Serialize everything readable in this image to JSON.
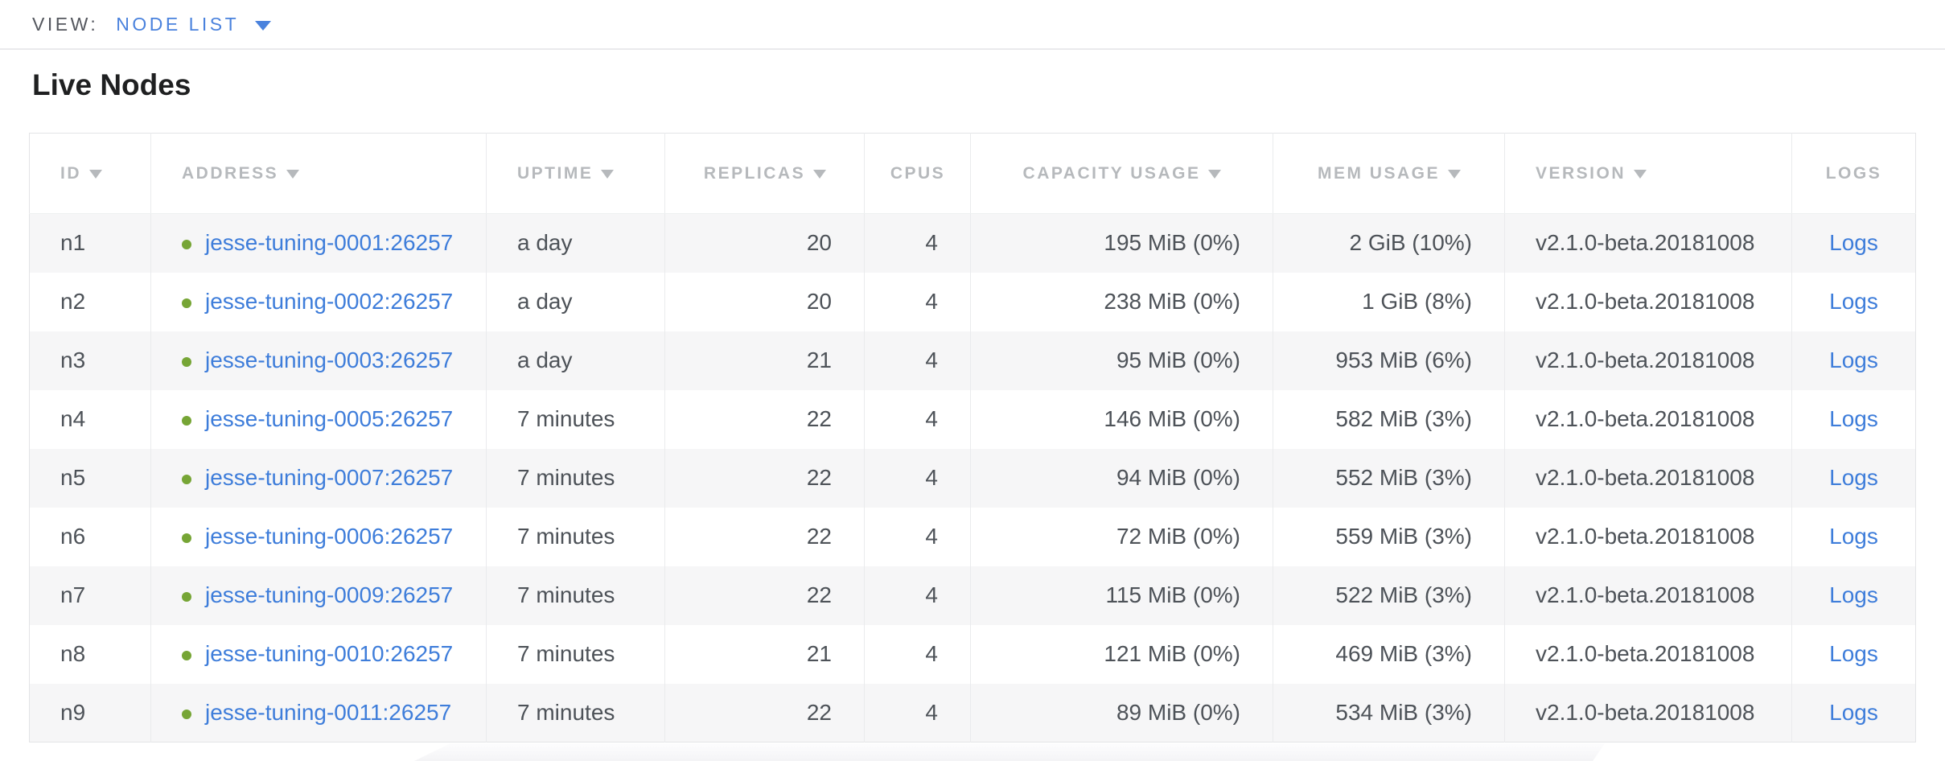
{
  "view_bar": {
    "label": "VIEW:",
    "selected_view": "NODE LIST"
  },
  "page": {
    "title": "Live Nodes"
  },
  "colors": {
    "accent_blue": "#4a82dd",
    "link_blue": "#3e7dda",
    "live_dot_green": "#76a535",
    "header_gray": "#b6b9bc",
    "cell_text": "#4d5258",
    "row_stripe": "#f6f6f7"
  },
  "table": {
    "columns": [
      {
        "key": "id",
        "label": "ID",
        "sortable": true
      },
      {
        "key": "address",
        "label": "ADDRESS",
        "sortable": true
      },
      {
        "key": "uptime",
        "label": "UPTIME",
        "sortable": true
      },
      {
        "key": "replicas",
        "label": "REPLICAS",
        "sortable": true
      },
      {
        "key": "cpus",
        "label": "CPUS",
        "sortable": false
      },
      {
        "key": "capacity",
        "label": "CAPACITY USAGE",
        "sortable": true
      },
      {
        "key": "mem",
        "label": "MEM USAGE",
        "sortable": true
      },
      {
        "key": "version",
        "label": "VERSION",
        "sortable": true
      },
      {
        "key": "logs",
        "label": "LOGS",
        "sortable": false
      }
    ],
    "rows": [
      {
        "id": "n1",
        "status": "live",
        "address": "jesse-tuning-0001:26257",
        "uptime": "a day",
        "replicas": "20",
        "cpus": "4",
        "capacity": "195 MiB (0%)",
        "mem": "2 GiB (10%)",
        "version": "v2.1.0-beta.20181008",
        "logs": "Logs"
      },
      {
        "id": "n2",
        "status": "live",
        "address": "jesse-tuning-0002:26257",
        "uptime": "a day",
        "replicas": "20",
        "cpus": "4",
        "capacity": "238 MiB (0%)",
        "mem": "1 GiB (8%)",
        "version": "v2.1.0-beta.20181008",
        "logs": "Logs"
      },
      {
        "id": "n3",
        "status": "live",
        "address": "jesse-tuning-0003:26257",
        "uptime": "a day",
        "replicas": "21",
        "cpus": "4",
        "capacity": "95 MiB (0%)",
        "mem": "953 MiB (6%)",
        "version": "v2.1.0-beta.20181008",
        "logs": "Logs"
      },
      {
        "id": "n4",
        "status": "live",
        "address": "jesse-tuning-0005:26257",
        "uptime": "7 minutes",
        "replicas": "22",
        "cpus": "4",
        "capacity": "146 MiB (0%)",
        "mem": "582 MiB (3%)",
        "version": "v2.1.0-beta.20181008",
        "logs": "Logs"
      },
      {
        "id": "n5",
        "status": "live",
        "address": "jesse-tuning-0007:26257",
        "uptime": "7 minutes",
        "replicas": "22",
        "cpus": "4",
        "capacity": "94 MiB (0%)",
        "mem": "552 MiB (3%)",
        "version": "v2.1.0-beta.20181008",
        "logs": "Logs"
      },
      {
        "id": "n6",
        "status": "live",
        "address": "jesse-tuning-0006:26257",
        "uptime": "7 minutes",
        "replicas": "22",
        "cpus": "4",
        "capacity": "72 MiB (0%)",
        "mem": "559 MiB (3%)",
        "version": "v2.1.0-beta.20181008",
        "logs": "Logs"
      },
      {
        "id": "n7",
        "status": "live",
        "address": "jesse-tuning-0009:26257",
        "uptime": "7 minutes",
        "replicas": "22",
        "cpus": "4",
        "capacity": "115 MiB (0%)",
        "mem": "522 MiB (3%)",
        "version": "v2.1.0-beta.20181008",
        "logs": "Logs"
      },
      {
        "id": "n8",
        "status": "live",
        "address": "jesse-tuning-0010:26257",
        "uptime": "7 minutes",
        "replicas": "21",
        "cpus": "4",
        "capacity": "121 MiB (0%)",
        "mem": "469 MiB (3%)",
        "version": "v2.1.0-beta.20181008",
        "logs": "Logs"
      },
      {
        "id": "n9",
        "status": "live",
        "address": "jesse-tuning-0011:26257",
        "uptime": "7 minutes",
        "replicas": "22",
        "cpus": "4",
        "capacity": "89 MiB (0%)",
        "mem": "534 MiB (3%)",
        "version": "v2.1.0-beta.20181008",
        "logs": "Logs"
      }
    ]
  }
}
